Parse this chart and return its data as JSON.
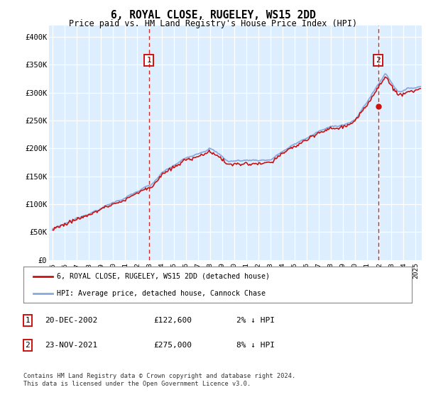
{
  "title": "6, ROYAL CLOSE, RUGELEY, WS15 2DD",
  "subtitle": "Price paid vs. HM Land Registry's House Price Index (HPI)",
  "ylabel_ticks": [
    "£0",
    "£50K",
    "£100K",
    "£150K",
    "£200K",
    "£250K",
    "£300K",
    "£350K",
    "£400K"
  ],
  "ytick_values": [
    0,
    50000,
    100000,
    150000,
    200000,
    250000,
    300000,
    350000,
    400000
  ],
  "ylim": [
    0,
    420000
  ],
  "xlim_start": 1994.7,
  "xlim_end": 2025.5,
  "hpi_color": "#88aadd",
  "price_color": "#cc1111",
  "bg_color": "#ddeeff",
  "marker1_x": 2002.97,
  "marker1_y": 122600,
  "marker2_x": 2021.92,
  "marker2_y": 275000,
  "legend_label1": "6, ROYAL CLOSE, RUGELEY, WS15 2DD (detached house)",
  "legend_label2": "HPI: Average price, detached house, Cannock Chase",
  "note1_label": "1",
  "note1_date": "20-DEC-2002",
  "note1_price": "£122,600",
  "note1_hpi": "2% ↓ HPI",
  "note2_label": "2",
  "note2_date": "23-NOV-2021",
  "note2_price": "£275,000",
  "note2_hpi": "8% ↓ HPI",
  "footer": "Contains HM Land Registry data © Crown copyright and database right 2024.\nThis data is licensed under the Open Government Licence v3.0.",
  "xtick_years": [
    1995,
    1996,
    1997,
    1998,
    1999,
    2000,
    2001,
    2002,
    2003,
    2004,
    2005,
    2006,
    2007,
    2008,
    2009,
    2010,
    2011,
    2012,
    2013,
    2014,
    2015,
    2016,
    2017,
    2018,
    2019,
    2020,
    2021,
    2022,
    2023,
    2024,
    2025
  ]
}
